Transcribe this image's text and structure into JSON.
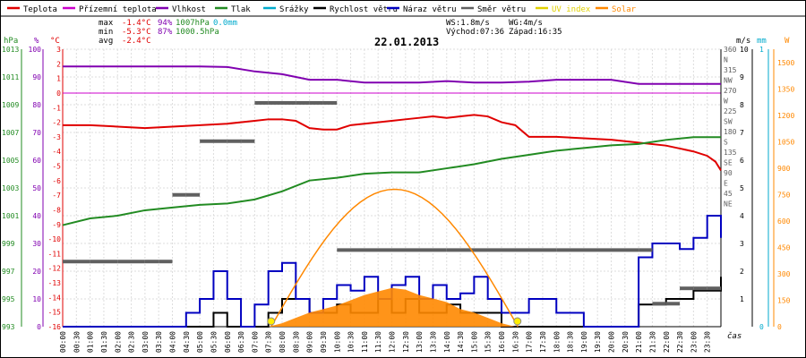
{
  "chart_data": {
    "type": "line",
    "title": "22.01.2013",
    "xlabel": "čas",
    "legend": [
      {
        "name": "Teplota",
        "color": "#e00000"
      },
      {
        "name": "Přízemní teplota",
        "color": "#cc00cc"
      },
      {
        "name": "Vlhkost",
        "color": "#8000b0"
      },
      {
        "name": "Tlak",
        "color": "#228b22"
      },
      {
        "name": "Srážky",
        "color": "#00aacc"
      },
      {
        "name": "Rychlost větru",
        "color": "#000000"
      },
      {
        "name": "Náraz větru",
        "color": "#0000c0"
      },
      {
        "name": "Směr větru",
        "color": "#606060"
      },
      {
        "name": "UV index",
        "color": "#e0d000"
      },
      {
        "name": "Solar",
        "color": "#ff8800"
      }
    ],
    "stats": {
      "max": {
        "label": "max",
        "temp": "-1.4°C",
        "hum": "94%",
        "press": "1007hPa",
        "rain": "0.0mm"
      },
      "min": {
        "label": "min",
        "temp": "-5.3°C",
        "hum": "87%",
        "press": "1000.5hPa"
      },
      "avg": {
        "label": "avg",
        "temp": "-2.4°C"
      },
      "ws": "WS:1.8m/s",
      "wg": "WG:4m/s",
      "sunrise": "Východ:07:36",
      "sunset": "Západ:16:35"
    },
    "axes": {
      "hpa": {
        "unit": "hPa",
        "ticks": [
          "1013",
          "1011",
          "1009",
          "1007",
          "1005",
          "1003",
          "1001",
          "999",
          "997",
          "995",
          "993"
        ]
      },
      "pct": {
        "unit": "%",
        "ticks": [
          "100",
          "90",
          "80",
          "70",
          "60",
          "50",
          "40",
          "30",
          "20",
          "10",
          "0"
        ]
      },
      "temp": {
        "unit": "°C",
        "ticks": [
          "3",
          "2",
          "1",
          "0",
          "-1",
          "-2",
          "-3",
          "-4",
          "-5",
          "-6",
          "-7",
          "-8",
          "-9",
          "-10",
          "-11",
          "-12",
          "-13",
          "-14",
          "-15",
          "-16"
        ]
      },
      "dir": {
        "ticks": [
          "360",
          "N",
          "315",
          "NW",
          "270",
          "W",
          "225",
          "SW",
          "180",
          "S",
          "135",
          "SE",
          "90",
          "E",
          "45",
          "NE"
        ]
      },
      "ms": {
        "unit": "m/s",
        "ticks": [
          "10",
          "9",
          "8",
          "7",
          "6",
          "5",
          "4",
          "3",
          "2",
          "1"
        ]
      },
      "mm": {
        "unit": "mm",
        "ticks": [
          "1",
          "0"
        ]
      },
      "solar": {
        "unit": "W",
        "ticks": [
          "1500",
          "1350",
          "1200",
          "1050",
          "900",
          "750",
          "600",
          "450",
          "300",
          "150",
          "0"
        ]
      },
      "xticks": [
        "00:00",
        "00:30",
        "01:00",
        "01:30",
        "02:00",
        "02:30",
        "03:00",
        "03:30",
        "04:00",
        "04:30",
        "05:00",
        "05:30",
        "06:00",
        "06:30",
        "07:00",
        "07:30",
        "08:00",
        "08:30",
        "09:00",
        "09:30",
        "10:00",
        "10:30",
        "11:00",
        "11:30",
        "12:00",
        "12:30",
        "13:00",
        "13:30",
        "14:00",
        "14:30",
        "15:00",
        "15:30",
        "16:00",
        "16:30",
        "17:00",
        "17:30",
        "18:00",
        "18:30",
        "19:00",
        "19:30",
        "20:00",
        "20:30",
        "21:00",
        "21:30",
        "22:00",
        "22:30",
        "23:00",
        "23:30"
      ]
    },
    "series": [
      {
        "name": "Teplota",
        "unit": "°C",
        "color": "#e00000",
        "x": [
          0,
          1,
          2,
          3,
          4,
          5,
          6,
          7,
          7.5,
          8,
          8.5,
          9,
          9.5,
          10,
          10.5,
          11,
          11.5,
          12,
          12.5,
          13,
          13.5,
          14,
          14.5,
          15,
          15.5,
          16,
          16.5,
          17,
          18,
          19,
          20,
          21,
          22,
          22.5,
          23,
          23.5,
          23.8,
          24
        ],
        "values": [
          -2.2,
          -2.2,
          -2.3,
          -2.4,
          -2.3,
          -2.2,
          -2.1,
          -1.9,
          -1.8,
          -1.8,
          -1.9,
          -2.4,
          -2.5,
          -2.5,
          -2.2,
          -2.1,
          -2.0,
          -1.9,
          -1.8,
          -1.7,
          -1.6,
          -1.7,
          -1.6,
          -1.5,
          -1.6,
          -2.0,
          -2.2,
          -3.0,
          -3.0,
          -3.1,
          -3.2,
          -3.4,
          -3.6,
          -3.8,
          -4.0,
          -4.3,
          -4.7,
          -5.3
        ]
      },
      {
        "name": "Vlhkost",
        "unit": "%",
        "color": "#8000b0",
        "x": [
          0,
          1,
          2,
          3,
          4,
          5,
          6,
          7,
          8,
          9,
          10,
          11,
          12,
          13,
          14,
          15,
          16,
          17,
          18,
          19,
          20,
          21,
          22,
          23,
          24
        ],
        "values": [
          93.8,
          93.8,
          93.8,
          93.8,
          93.8,
          93.8,
          93.6,
          92,
          91,
          89,
          89,
          88,
          88,
          88,
          88.5,
          88,
          88,
          88.3,
          89,
          89,
          89,
          87.5,
          87.5,
          87.5,
          87.5
        ]
      },
      {
        "name": "Tlak",
        "unit": "hPa",
        "color": "#228b22",
        "x": [
          0,
          1,
          2,
          3,
          4,
          5,
          6,
          7,
          8,
          9,
          10,
          11,
          12,
          13,
          14,
          15,
          16,
          17,
          18,
          19,
          20,
          21,
          22,
          23,
          24
        ],
        "values": [
          1000.5,
          1001,
          1001.2,
          1001.6,
          1001.8,
          1002,
          1002.1,
          1002.4,
          1003,
          1003.8,
          1004,
          1004.3,
          1004.4,
          1004.4,
          1004.7,
          1005,
          1005.4,
          1005.7,
          1006,
          1006.2,
          1006.4,
          1006.5,
          1006.8,
          1007,
          1007
        ]
      },
      {
        "name": "Rychlost větru",
        "unit": "m/s",
        "color": "#000000",
        "x": [
          0,
          1,
          2,
          3,
          4,
          5,
          5.5,
          6,
          7,
          7.5,
          8,
          8.5,
          9,
          9.5,
          10,
          10.5,
          11,
          11.5,
          12,
          12.5,
          13,
          13.5,
          14,
          14.5,
          15,
          15.5,
          16,
          17,
          18,
          19,
          20,
          21,
          21.5,
          22,
          22.5,
          23,
          23.5,
          24
        ],
        "values": [
          0,
          0,
          0,
          0,
          0,
          0,
          0.5,
          0,
          0,
          0.5,
          1,
          1,
          0.5,
          0.5,
          0.8,
          0.5,
          0.5,
          1,
          0.5,
          1,
          0.5,
          0.5,
          0.8,
          0.5,
          0.5,
          0.5,
          0,
          0,
          0,
          0,
          0,
          0.8,
          0.8,
          1,
          1,
          1.3,
          1.3,
          1.8
        ]
      },
      {
        "name": "Náraz větru",
        "unit": "m/s",
        "color": "#0000c0",
        "x": [
          0,
          1,
          2,
          3,
          4,
          4.5,
          5,
          5.5,
          6,
          6.5,
          7,
          7.5,
          8,
          8.5,
          9,
          9.5,
          10,
          10.5,
          11,
          11.5,
          12,
          12.5,
          13,
          13.5,
          14,
          14.5,
          15,
          15.5,
          16,
          16.5,
          17,
          18,
          19,
          20,
          20.5,
          21,
          21.5,
          22,
          22.5,
          23,
          23.5,
          24
        ],
        "values": [
          0,
          0,
          0,
          0,
          0,
          0.5,
          1,
          2,
          1,
          0,
          0.8,
          2,
          2.3,
          1,
          0.5,
          1,
          1.5,
          1.3,
          1.8,
          1,
          1.5,
          1.8,
          1,
          1.5,
          1,
          1.2,
          1.8,
          1,
          0.5,
          0.5,
          1,
          0.5,
          0,
          0,
          0,
          2.5,
          3,
          3,
          2.8,
          3.2,
          4,
          3.2
        ]
      },
      {
        "name": "Směr větru",
        "unit": "°",
        "color": "#606060",
        "x": [
          0,
          1,
          2,
          3,
          3.5,
          4,
          4.5,
          5,
          6,
          6.5,
          7,
          7.5,
          8,
          8.5,
          9,
          9.5,
          10,
          12,
          14,
          16,
          18,
          20,
          21,
          21.5,
          22,
          22.5,
          23,
          23.5,
          24
        ],
        "values": [
          85,
          85,
          85,
          85,
          85,
          172,
          172,
          242,
          242,
          242,
          292,
          292,
          292,
          292,
          292,
          292,
          100,
          100,
          100,
          100,
          100,
          100,
          100,
          30,
          30,
          50,
          50,
          50,
          85
        ]
      },
      {
        "name": "Solar",
        "unit": "W",
        "color": "#ff8800",
        "x": [
          7.5,
          8,
          8.5,
          9,
          9.5,
          10,
          10.5,
          11,
          11.5,
          12,
          12.5,
          13,
          13.5,
          14,
          14.5,
          15,
          15.5,
          16,
          16.5
        ],
        "values": [
          0,
          20,
          50,
          80,
          100,
          120,
          150,
          180,
          200,
          220,
          210,
          180,
          160,
          140,
          100,
          80,
          50,
          20,
          0
        ]
      }
    ]
  }
}
